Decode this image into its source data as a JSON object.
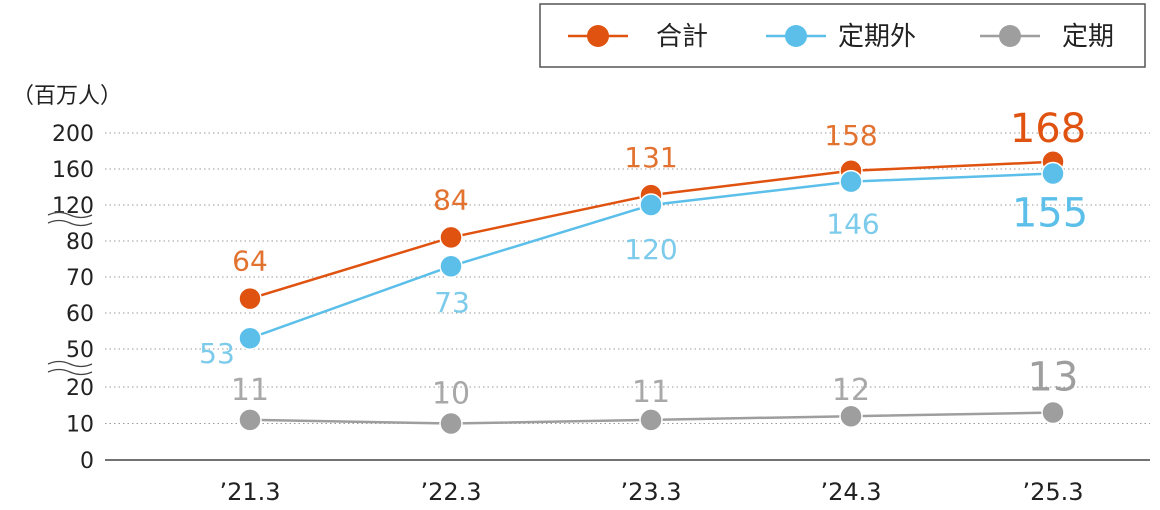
{
  "chart_data": {
    "type": "line",
    "unit_label": "（百万人）",
    "categories": [
      "’21.3",
      "’22.3",
      "’23.3",
      "’24.3",
      "’25.3"
    ],
    "y_ticks": [
      "200",
      "160",
      "120",
      "80",
      "70",
      "60",
      "50",
      "20",
      "10",
      "0"
    ],
    "axis_breaks": [
      "between 120 and 80",
      "between 50 and 20"
    ],
    "grid": "dotted horizontal",
    "legend_position": "top-right",
    "series": [
      {
        "key": "total",
        "name": "合計",
        "color": "#E0520F",
        "label_color": "#E2722F",
        "values": [
          64,
          84,
          131,
          158,
          168
        ],
        "labels": [
          "64",
          "84",
          "131",
          "158",
          "168"
        ]
      },
      {
        "key": "non_commuter",
        "name": "定期外",
        "color": "#5BBFEA",
        "label_color": "#7CCBEB",
        "values": [
          53,
          73,
          120,
          146,
          155
        ],
        "labels": [
          "53",
          "73",
          "120",
          "146",
          "155"
        ]
      },
      {
        "key": "commuter",
        "name": "定期",
        "color": "#9E9E9E",
        "label_color": "#A8A8A8",
        "values": [
          11,
          10,
          11,
          12,
          13
        ],
        "labels": [
          "11",
          "10",
          "11",
          "12",
          "13"
        ]
      }
    ]
  }
}
